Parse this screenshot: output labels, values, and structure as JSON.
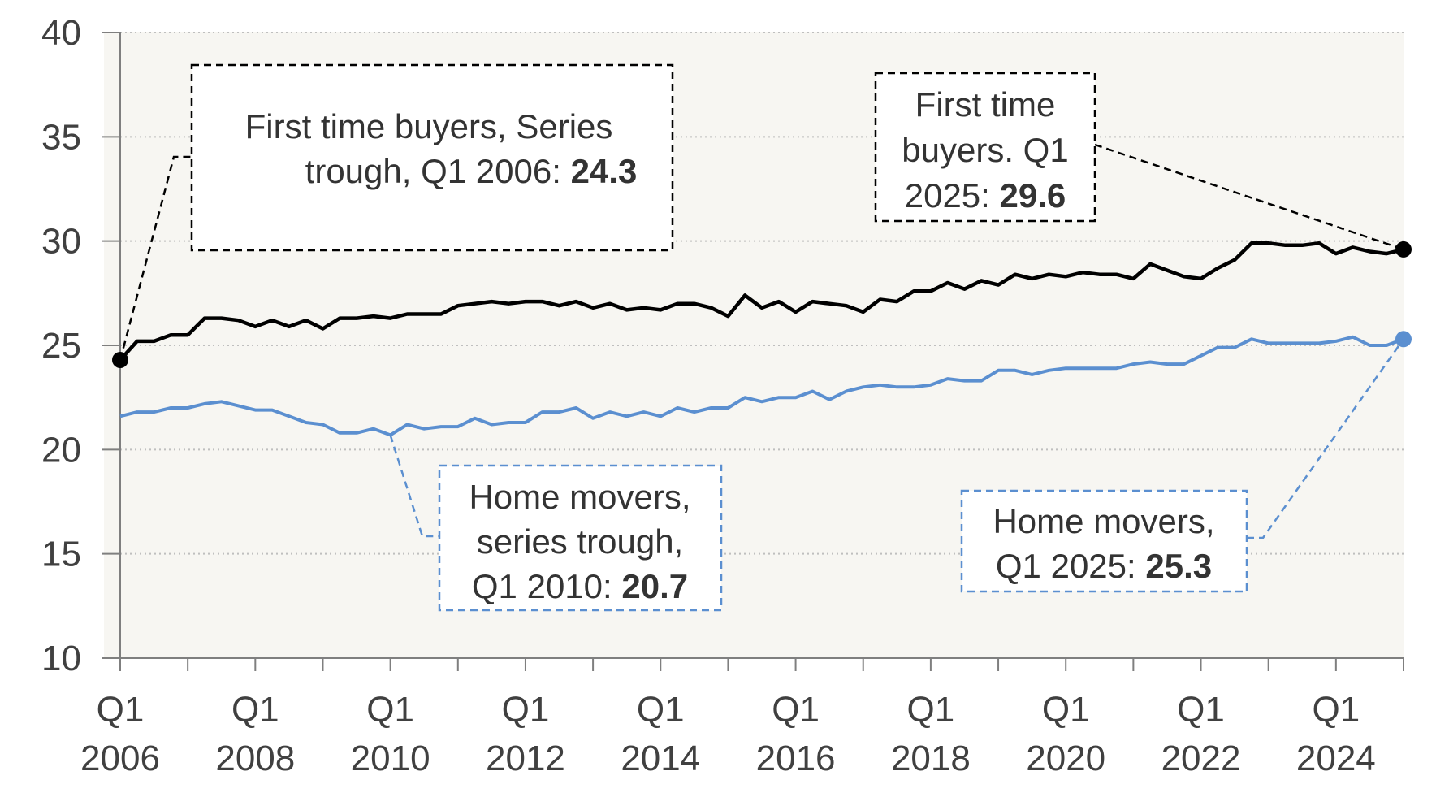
{
  "chart_data": {
    "type": "line",
    "title": "",
    "xlabel": "",
    "ylabel": "",
    "ylim": [
      10,
      40
    ],
    "yticks": [
      10,
      15,
      20,
      25,
      30,
      35,
      40
    ],
    "xlim": [
      "Q1 2006",
      "Q1 2025"
    ],
    "xtick_labels": [
      {
        "q": "Q1",
        "year": "2006"
      },
      {
        "q": "Q1",
        "year": "2008"
      },
      {
        "q": "Q1",
        "year": "2010"
      },
      {
        "q": "Q1",
        "year": "2012"
      },
      {
        "q": "Q1",
        "year": "2014"
      },
      {
        "q": "Q1",
        "year": "2016"
      },
      {
        "q": "Q1",
        "year": "2018"
      },
      {
        "q": "Q1",
        "year": "2020"
      },
      {
        "q": "Q1",
        "year": "2022"
      },
      {
        "q": "Q1",
        "year": "2024"
      }
    ],
    "grid": "horizontal dotted",
    "legend": "none (direct annotations)",
    "plot_background": "#f7f6f2",
    "quarters_start": "Q1 2006",
    "series": [
      {
        "color": "#000000",
        "values": [
          24.3,
          25.2,
          25.2,
          25.5,
          25.5,
          26.3,
          26.3,
          26.2,
          25.9,
          26.2,
          25.9,
          26.2,
          25.8,
          26.3,
          26.3,
          26.4,
          26.3,
          26.5,
          26.5,
          26.5,
          26.9,
          27.0,
          27.1,
          27.0,
          27.1,
          27.1,
          26.9,
          27.1,
          26.8,
          27.0,
          26.7,
          26.8,
          26.7,
          27.0,
          27.0,
          26.8,
          26.4,
          27.4,
          26.8,
          27.1,
          26.6,
          27.1,
          27.0,
          26.9,
          26.6,
          27.2,
          27.1,
          27.6,
          27.6,
          28.0,
          27.7,
          28.1,
          27.9,
          28.4,
          28.2,
          28.4,
          28.3,
          28.5,
          28.4,
          28.4,
          28.2,
          28.9,
          28.6,
          28.3,
          28.2,
          28.7,
          29.1,
          29.9,
          29.9,
          29.8,
          29.8,
          29.9,
          29.4,
          29.7,
          29.5,
          29.4,
          29.6
        ]
      },
      {
        "color": "#5b8fd0",
        "values": [
          21.6,
          21.8,
          21.8,
          22.0,
          22.0,
          22.2,
          22.3,
          22.1,
          21.9,
          21.9,
          21.6,
          21.3,
          21.2,
          20.8,
          20.8,
          21.0,
          20.7,
          21.2,
          21.0,
          21.1,
          21.1,
          21.5,
          21.2,
          21.3,
          21.3,
          21.8,
          21.8,
          22.0,
          21.5,
          21.8,
          21.6,
          21.8,
          21.6,
          22.0,
          21.8,
          22.0,
          22.0,
          22.5,
          22.3,
          22.5,
          22.5,
          22.8,
          22.4,
          22.8,
          23.0,
          23.1,
          23.0,
          23.0,
          23.1,
          23.4,
          23.3,
          23.3,
          23.8,
          23.8,
          23.6,
          23.8,
          23.9,
          23.9,
          23.9,
          23.9,
          24.1,
          24.2,
          24.1,
          24.1,
          24.5,
          24.9,
          24.9,
          25.3,
          25.1,
          25.1,
          25.1,
          25.1,
          25.2,
          25.4,
          25.0,
          25.0,
          25.3
        ]
      }
    ],
    "annotations": [
      {
        "id": "ft-trough",
        "lines": [
          "First time buyers, Series",
          "trough, Q1 2006: "
        ],
        "value": "24.3",
        "color": "#000000"
      },
      {
        "id": "ft-latest",
        "lines": [
          "First time",
          "buyers. Q1",
          "2025: "
        ],
        "value": "29.6",
        "color": "#000000"
      },
      {
        "id": "hm-trough",
        "lines": [
          "Home movers,",
          "series trough,",
          "Q1 2010: "
        ],
        "value": "20.7",
        "color": "#5b8fd0"
      },
      {
        "id": "hm-latest",
        "lines": [
          "Home movers,",
          "Q1 2025: "
        ],
        "value": "25.3",
        "color": "#5b8fd0"
      }
    ]
  }
}
